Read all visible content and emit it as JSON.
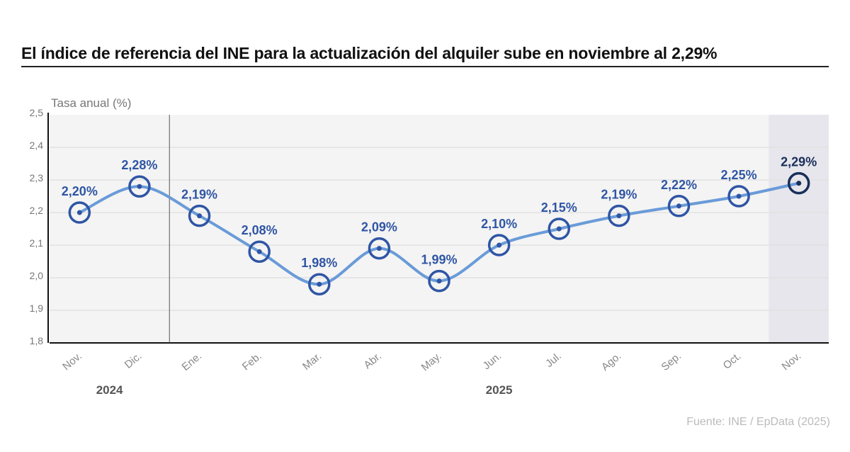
{
  "title": "El índice de referencia del INE para la actualización del alquiler sube en noviembre al 2,29%",
  "source": "Fuente: INE / EpData (2025)",
  "chart_data": {
    "type": "line",
    "title": "El índice de referencia del INE para la actualización del alquiler sube en noviembre al 2,29%",
    "ylabel": "Tasa anual (%)",
    "ylim": [
      1.8,
      2.5
    ],
    "yticks": [
      "1,8",
      "1,9",
      "2,0",
      "2,1",
      "2,2",
      "2,3",
      "2,4",
      "2,5"
    ],
    "categories": [
      "Nov.",
      "Dic.",
      "Ene.",
      "Feb.",
      "Mar.",
      "Abr.",
      "May.",
      "Jun.",
      "Jul.",
      "Ago.",
      "Sep.",
      "Oct.",
      "Nov."
    ],
    "year_groups": [
      {
        "label": "2024",
        "from": 0,
        "to": 1
      },
      {
        "label": "2025",
        "from": 2,
        "to": 12
      }
    ],
    "values": [
      2.2,
      2.28,
      2.19,
      2.08,
      1.98,
      2.09,
      1.99,
      2.1,
      2.15,
      2.19,
      2.22,
      2.25,
      2.29
    ],
    "data_labels": [
      "2,20%",
      "2,28%",
      "2,19%",
      "2,08%",
      "1,98%",
      "2,09%",
      "1,99%",
      "2,10%",
      "2,15%",
      "2,19%",
      "2,22%",
      "2,25%",
      "2,29%"
    ],
    "highlight_index": 12,
    "grid": true,
    "colors": {
      "line": "#6a9bd8",
      "marker": "#2f55a4",
      "highlight": "#1a2e5a",
      "plot_bg": "#f4f4f4",
      "highlight_bg": "#e6e6ec"
    }
  }
}
